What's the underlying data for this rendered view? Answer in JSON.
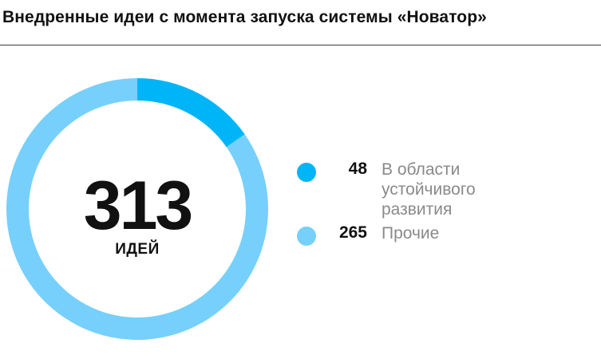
{
  "title": "Внедренные идеи с момента запуска системы «Новатор»",
  "chart_data": {
    "type": "pie",
    "title": "Внедренные идеи с момента запуска системы «Новатор»",
    "total": "313",
    "total_unit": "ИДЕЙ",
    "series": [
      {
        "name": "В области устойчивого развития",
        "label_lines": [
          "В области",
          "устойчивого",
          "развития"
        ],
        "value": 48,
        "color": "#00b5f7"
      },
      {
        "name": "Прочие",
        "label_lines": [
          "Прочие"
        ],
        "value": 265,
        "color": "#76d0fb"
      }
    ]
  }
}
